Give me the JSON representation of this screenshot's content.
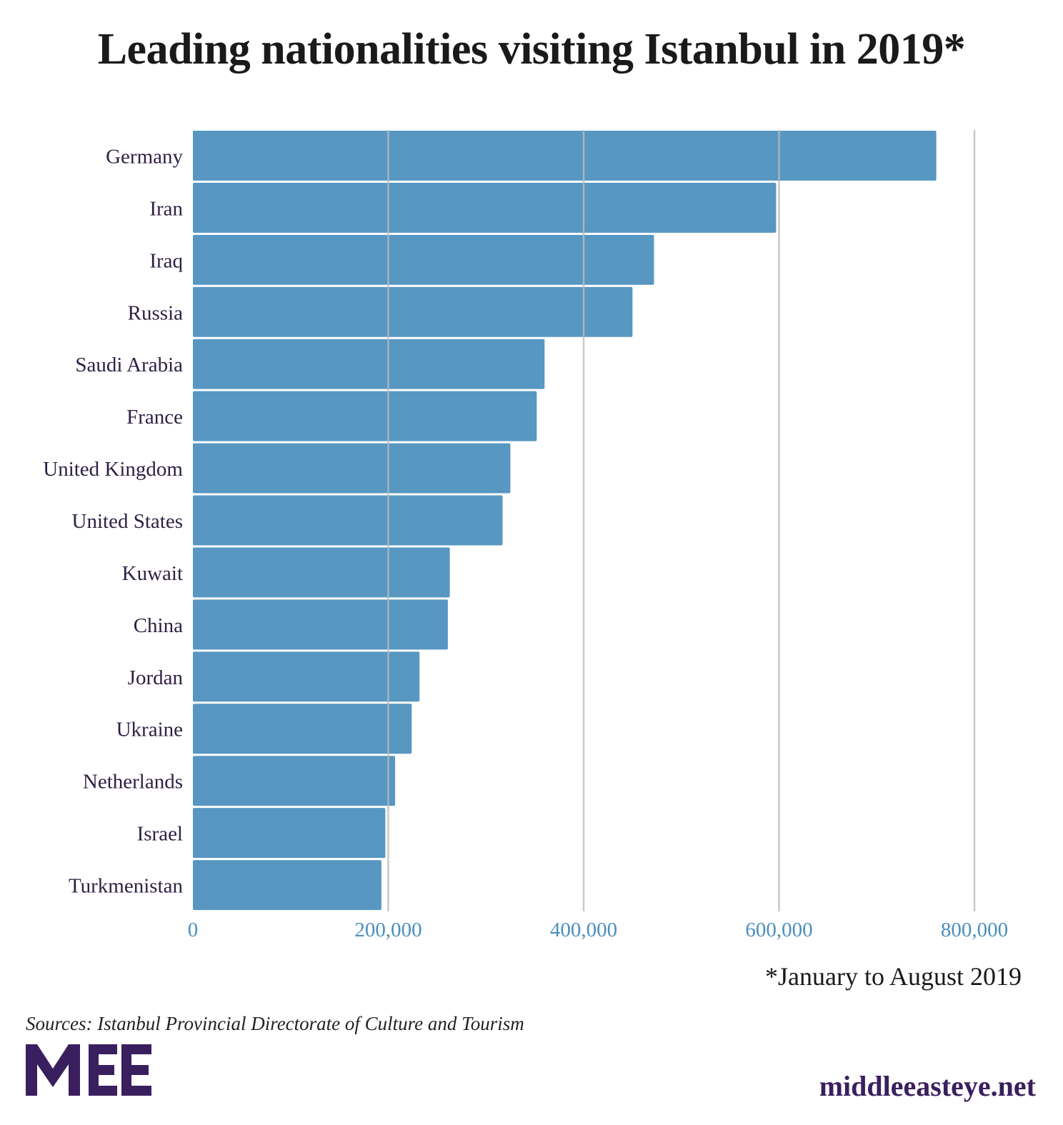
{
  "title": "Leading nationalities visiting Istanbul in 2019*",
  "note": "*January to August 2019",
  "source": "Sources: Istanbul Provincial Directorate of Culture and Tourism",
  "site": "middleeasteye.net",
  "logo_text": "MEE",
  "colors": {
    "bar": "#4a8fbd",
    "tick": "#4a8fbd",
    "label": "#2e1f44",
    "brand": "#3a1f5e",
    "grid": "#bbbbbb"
  },
  "chart_data": {
    "type": "bar",
    "orientation": "horizontal",
    "title": "Leading nationalities visiting Istanbul in 2019*",
    "categories": [
      "Germany",
      "Iran",
      "Iraq",
      "Russia",
      "Saudi Arabia",
      "France",
      "United Kingdom",
      "United States",
      "Kuwait",
      "China",
      "Jordan",
      "Ukraine",
      "Netherlands",
      "Israel",
      "Turkmenistan"
    ],
    "values": [
      761000,
      597000,
      472000,
      450000,
      360000,
      352000,
      325000,
      317000,
      263000,
      261000,
      232000,
      224000,
      207000,
      197000,
      193000
    ],
    "xlim": [
      0,
      800000
    ],
    "xticks": [
      0,
      200000,
      400000,
      600000,
      800000
    ],
    "xtick_labels": [
      "0",
      "200,000",
      "400,000",
      "600,000",
      "800,000"
    ],
    "grid": "vertical"
  }
}
